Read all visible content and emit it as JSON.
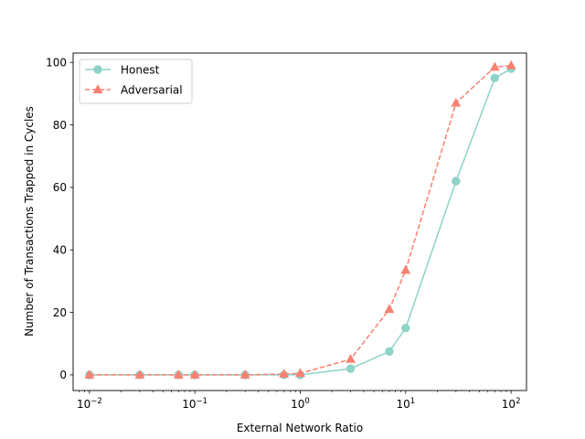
{
  "chart_data": {
    "type": "line",
    "xscale": "log",
    "xlim": [
      0.007,
      140
    ],
    "ylim": [
      -5,
      103
    ],
    "grid": false,
    "xlabel": "External Network Ratio",
    "ylabel": "Number of Transactions Trapped in Cycles",
    "x_ticks": [
      {
        "value": 0.01,
        "base": "10",
        "exp": "−2"
      },
      {
        "value": 0.1,
        "base": "10",
        "exp": "−1"
      },
      {
        "value": 1,
        "base": "10",
        "exp": "0"
      },
      {
        "value": 10,
        "base": "10",
        "exp": "1"
      },
      {
        "value": 100,
        "base": "10",
        "exp": "2"
      }
    ],
    "y_ticks": [
      0,
      20,
      40,
      60,
      80,
      100
    ],
    "legend_position": "top-left",
    "series": [
      {
        "name": "Honest",
        "color": "#8dd3c7",
        "marker": "circle",
        "linestyle": "solid",
        "points": [
          [
            0.01,
            0
          ],
          [
            0.03,
            0
          ],
          [
            0.07,
            0
          ],
          [
            0.1,
            0
          ],
          [
            0.3,
            0
          ],
          [
            0.7,
            0
          ],
          [
            1,
            0
          ],
          [
            3,
            2
          ],
          [
            7,
            7.5
          ],
          [
            10,
            15
          ],
          [
            30,
            62
          ],
          [
            70,
            95
          ],
          [
            100,
            98
          ]
        ]
      },
      {
        "name": "Adversarial",
        "color": "#fa8072",
        "marker": "triangle",
        "linestyle": "dashed",
        "points": [
          [
            0.01,
            0
          ],
          [
            0.03,
            0
          ],
          [
            0.07,
            0
          ],
          [
            0.1,
            0
          ],
          [
            0.3,
            0
          ],
          [
            0.7,
            0.3
          ],
          [
            1,
            0.5
          ],
          [
            3,
            5
          ],
          [
            7,
            21
          ],
          [
            10,
            33.5
          ],
          [
            30,
            87
          ],
          [
            70,
            98.5
          ],
          [
            100,
            99
          ]
        ]
      }
    ]
  }
}
